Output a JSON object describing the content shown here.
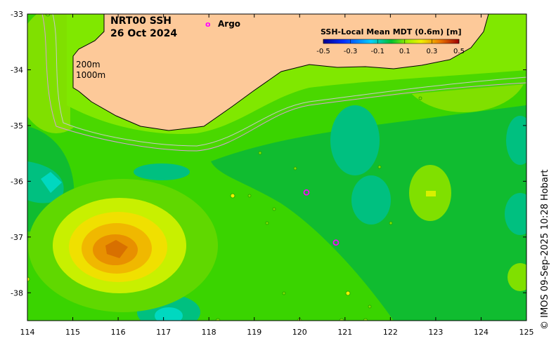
{
  "title": {
    "line1": "NRT00 SSH",
    "line2": "26 Oct 2024"
  },
  "legend": {
    "argo_symbol": "o",
    "argo_label": "Argo",
    "argo_color": "#ff00ff"
  },
  "colorbar": {
    "title": "SSH-Local Mean MDT (0.6m) [m]",
    "ticks": [
      "-0.5",
      "-0.3",
      "-0.1",
      "0.1",
      "0.3",
      "0.5"
    ],
    "range": [
      -0.5,
      0.5
    ]
  },
  "contours": {
    "label1": "200m",
    "label2": "1000m"
  },
  "axes": {
    "x_ticks": [
      "114",
      "115",
      "116",
      "117",
      "118",
      "119",
      "120",
      "121",
      "122",
      "123",
      "124",
      "125"
    ],
    "y_ticks": [
      "-33",
      "-34",
      "-35",
      "-36",
      "-37",
      "-38"
    ],
    "xlim": [
      114,
      125
    ],
    "ylim": [
      -38.5,
      -33
    ]
  },
  "credit": "© IMOS 09-Sep-2025 10:28 Hobart",
  "argo_floats": [
    {
      "lon": 120.15,
      "lat": -36.2
    },
    {
      "lon": 120.8,
      "lat": -37.1
    }
  ],
  "colors": {
    "land": "#fdc999",
    "base": "#3ad400"
  }
}
